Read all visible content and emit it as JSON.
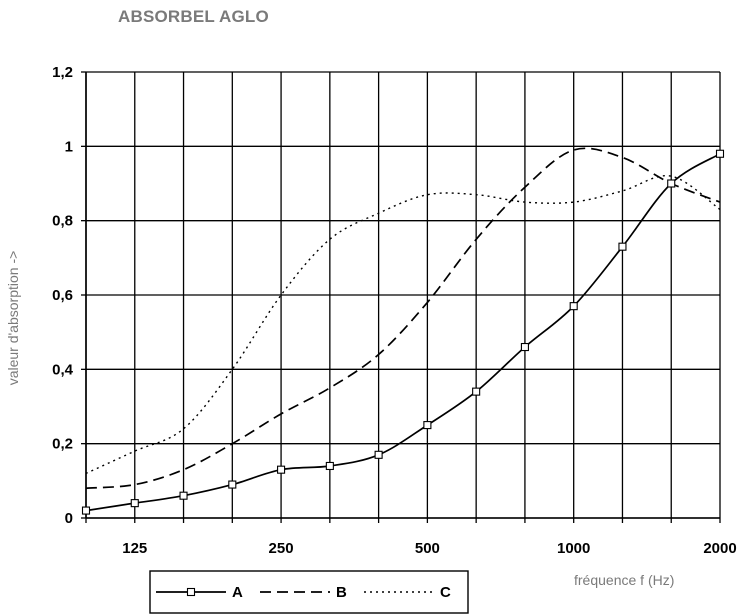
{
  "chart_data": {
    "type": "line",
    "title": "ABSORBEL AGLO",
    "xlabel": "fréquence f (Hz)",
    "ylabel": "valeur d'absorption ->",
    "x": [
      100,
      125,
      160,
      200,
      250,
      315,
      400,
      500,
      630,
      800,
      1000,
      1250,
      1600,
      2000
    ],
    "x_tick_labels": [
      {
        "x": 125,
        "label": "125"
      },
      {
        "x": 250,
        "label": "250"
      },
      {
        "x": 500,
        "label": "500"
      },
      {
        "x": 1000,
        "label": "1000"
      },
      {
        "x": 2000,
        "label": "2000"
      }
    ],
    "y_tick_labels": [
      "0",
      "0,2",
      "0,4",
      "0,6",
      "0,8",
      "1",
      "1,2"
    ],
    "y_ticks": [
      0,
      0.2,
      0.4,
      0.6,
      0.8,
      1.0,
      1.2
    ],
    "ylim": [
      0,
      1.2
    ],
    "grid": true,
    "legend_position": "bottom-left",
    "series": [
      {
        "name": "A",
        "style": "solid",
        "marker": "square",
        "color": "#000000",
        "values": [
          0.02,
          0.04,
          0.06,
          0.09,
          0.13,
          0.14,
          0.17,
          0.25,
          0.34,
          0.46,
          0.57,
          0.73,
          0.9,
          0.98
        ]
      },
      {
        "name": "B",
        "style": "dashed",
        "marker": "none",
        "color": "#000000",
        "values": [
          0.08,
          0.09,
          0.13,
          0.2,
          0.28,
          0.35,
          0.44,
          0.58,
          0.75,
          0.89,
          0.99,
          0.97,
          0.9,
          0.85
        ]
      },
      {
        "name": "C",
        "style": "dotted",
        "marker": "none",
        "color": "#000000",
        "values": [
          0.12,
          0.18,
          0.24,
          0.4,
          0.6,
          0.75,
          0.82,
          0.87,
          0.87,
          0.85,
          0.85,
          0.88,
          0.92,
          0.83
        ]
      }
    ]
  }
}
